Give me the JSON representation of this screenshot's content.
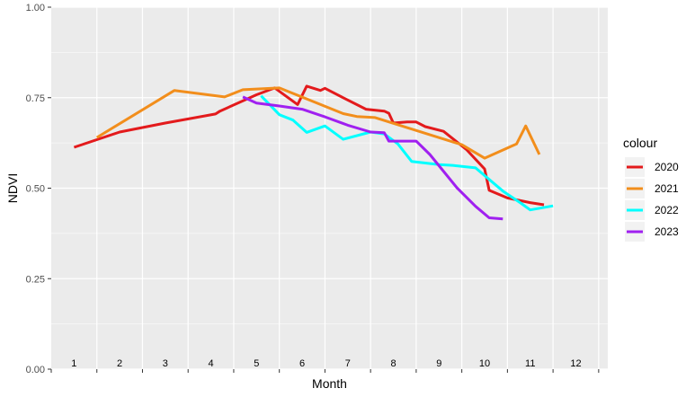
{
  "chart_data": {
    "type": "line",
    "xlabel": "Month",
    "ylabel": "NDVI",
    "xlim": [
      0.5,
      12.7
    ],
    "ylim": [
      0,
      1
    ],
    "y_ticks": [
      "0.00",
      "0.25",
      "0.50",
      "0.75",
      "1.00"
    ],
    "y_tick_values": [
      0,
      0.25,
      0.5,
      0.75,
      1
    ],
    "month_labels": [
      "1",
      "2",
      "3",
      "4",
      "5",
      "6",
      "7",
      "8",
      "9",
      "10",
      "11",
      "12"
    ],
    "background": "#ebebeb",
    "grid": true,
    "legend": {
      "title": "colour",
      "position": "right"
    },
    "series": [
      {
        "name": "2020",
        "color": "#e31a1c",
        "points": [
          [
            1.0,
            0.613
          ],
          [
            2.0,
            0.655
          ],
          [
            3.0,
            0.68
          ],
          [
            4.1,
            0.705
          ],
          [
            4.2,
            0.713
          ],
          [
            5.0,
            0.758
          ],
          [
            5.4,
            0.777
          ],
          [
            5.9,
            0.731
          ],
          [
            6.1,
            0.782
          ],
          [
            6.4,
            0.77
          ],
          [
            6.5,
            0.776
          ],
          [
            6.9,
            0.75
          ],
          [
            7.4,
            0.718
          ],
          [
            7.8,
            0.713
          ],
          [
            7.9,
            0.707
          ],
          [
            8.0,
            0.68
          ],
          [
            8.3,
            0.683
          ],
          [
            8.5,
            0.683
          ],
          [
            8.7,
            0.67
          ],
          [
            9.1,
            0.657
          ],
          [
            9.6,
            0.607
          ],
          [
            10.0,
            0.553
          ],
          [
            10.1,
            0.494
          ],
          [
            10.5,
            0.473
          ],
          [
            11.0,
            0.46
          ],
          [
            11.3,
            0.454
          ]
        ]
      },
      {
        "name": "2021",
        "color": "#f28e1c",
        "points": [
          [
            1.5,
            0.64
          ],
          [
            3.2,
            0.77
          ],
          [
            4.3,
            0.752
          ],
          [
            4.7,
            0.772
          ],
          [
            5.5,
            0.777
          ],
          [
            6.9,
            0.706
          ],
          [
            7.2,
            0.698
          ],
          [
            7.6,
            0.695
          ],
          [
            9.5,
            0.62
          ],
          [
            10.0,
            0.583
          ],
          [
            10.7,
            0.622
          ],
          [
            10.9,
            0.672
          ],
          [
            11.2,
            0.593
          ]
        ]
      },
      {
        "name": "2022",
        "color": "#00ffff",
        "points": [
          [
            5.1,
            0.755
          ],
          [
            5.5,
            0.703
          ],
          [
            5.8,
            0.688
          ],
          [
            6.1,
            0.654
          ],
          [
            6.5,
            0.672
          ],
          [
            6.9,
            0.635
          ],
          [
            7.5,
            0.655
          ],
          [
            7.8,
            0.65
          ],
          [
            8.1,
            0.622
          ],
          [
            8.4,
            0.574
          ],
          [
            9.0,
            0.565
          ],
          [
            9.3,
            0.563
          ],
          [
            9.8,
            0.556
          ],
          [
            10.4,
            0.492
          ],
          [
            10.8,
            0.458
          ],
          [
            11.0,
            0.44
          ],
          [
            11.5,
            0.451
          ]
        ]
      },
      {
        "name": "2023",
        "color": "#a020f0",
        "points": [
          [
            4.7,
            0.752
          ],
          [
            5.0,
            0.735
          ],
          [
            5.5,
            0.727
          ],
          [
            6.0,
            0.718
          ],
          [
            6.5,
            0.697
          ],
          [
            7.0,
            0.674
          ],
          [
            7.5,
            0.655
          ],
          [
            7.8,
            0.653
          ],
          [
            7.9,
            0.63
          ],
          [
            8.5,
            0.63
          ],
          [
            8.8,
            0.593
          ],
          [
            9.4,
            0.5
          ],
          [
            9.8,
            0.45
          ],
          [
            10.1,
            0.418
          ],
          [
            10.4,
            0.415
          ]
        ]
      }
    ]
  }
}
